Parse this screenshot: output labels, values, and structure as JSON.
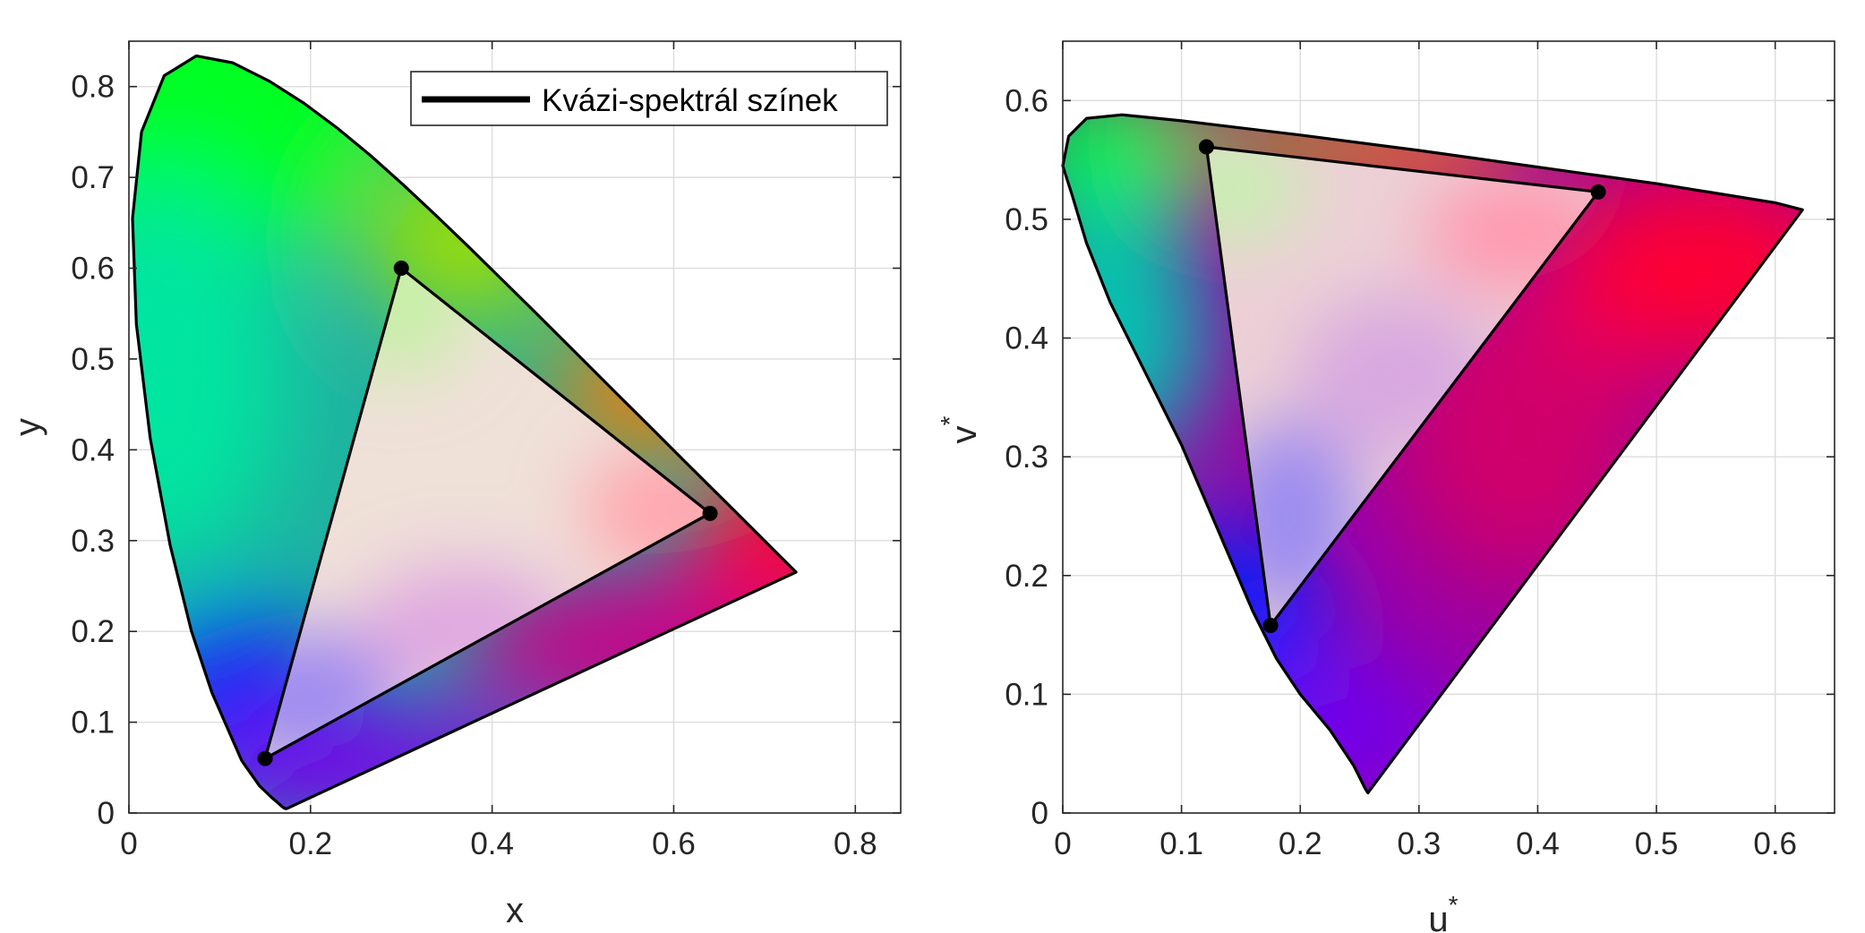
{
  "chart_data": [
    {
      "type": "line",
      "panel": "left",
      "xlabel": "x",
      "ylabel": "y",
      "xlim": [
        0,
        0.85
      ],
      "ylim": [
        0,
        0.85
      ],
      "xticks": [
        0,
        0.2,
        0.4,
        0.6,
        0.8
      ],
      "xtick_labels": [
        "0",
        "0.2",
        "0.4",
        "0.6",
        "0.8"
      ],
      "yticks": [
        0,
        0.1,
        0.2,
        0.3,
        0.4,
        0.5,
        0.6,
        0.7,
        0.8
      ],
      "ytick_labels": [
        "0",
        "0.1",
        "0.2",
        "0.3",
        "0.4",
        "0.5",
        "0.6",
        "0.7",
        "0.8"
      ],
      "grid": true,
      "legend": {
        "placement": "top-right",
        "entries": [
          "Kvázi-spektrál színek"
        ]
      },
      "series": [
        {
          "name": "Kvázi-spektrál színek",
          "x": [
            0.1741,
            0.1738,
            0.1733,
            0.1726,
            0.1714,
            0.1689,
            0.1644,
            0.1566,
            0.144,
            0.1241,
            0.0913,
            0.0687,
            0.0454,
            0.0235,
            0.0082,
            0.0039,
            0.0139,
            0.0389,
            0.0743,
            0.1142,
            0.1547,
            0.1929,
            0.2296,
            0.2658,
            0.3016,
            0.3373,
            0.3731,
            0.4087,
            0.4441,
            0.4788,
            0.5125,
            0.5448,
            0.5752,
            0.6029,
            0.627,
            0.6482,
            0.6658,
            0.6801,
            0.6915,
            0.7006,
            0.7079,
            0.714,
            0.719,
            0.723,
            0.726,
            0.7283,
            0.73,
            0.7311,
            0.732,
            0.7327,
            0.7334,
            0.734,
            0.7344,
            0.7346,
            0.7347,
            0.1741
          ],
          "y": [
            0.005,
            0.0049,
            0.0048,
            0.0048,
            0.0051,
            0.0069,
            0.0109,
            0.0177,
            0.0297,
            0.0578,
            0.1327,
            0.2007,
            0.295,
            0.4127,
            0.5384,
            0.6548,
            0.7502,
            0.812,
            0.8338,
            0.8262,
            0.8059,
            0.7816,
            0.7543,
            0.7243,
            0.6923,
            0.6589,
            0.6245,
            0.5896,
            0.5547,
            0.5202,
            0.4866,
            0.4544,
            0.4242,
            0.3965,
            0.3725,
            0.3514,
            0.334,
            0.3197,
            0.3083,
            0.2993,
            0.292,
            0.2859,
            0.2809,
            0.277,
            0.274,
            0.2717,
            0.27,
            0.2689,
            0.268,
            0.2673,
            0.2666,
            0.266,
            0.2656,
            0.2654,
            0.2653,
            0.005
          ]
        }
      ],
      "primaries": {
        "x": [
          0.64,
          0.3,
          0.15
        ],
        "y": [
          0.33,
          0.6,
          0.06
        ]
      }
    },
    {
      "type": "line",
      "panel": "right",
      "xlabel": "u",
      "xlabel_sup": "*",
      "ylabel": "v",
      "ylabel_sup": "*",
      "xlim": [
        0,
        0.65
      ],
      "ylim": [
        0,
        0.65
      ],
      "xticks": [
        0,
        0.1,
        0.2,
        0.3,
        0.4,
        0.5,
        0.6
      ],
      "xtick_labels": [
        "0",
        "0.1",
        "0.2",
        "0.3",
        "0.4",
        "0.5",
        "0.6"
      ],
      "yticks": [
        0,
        0.1,
        0.2,
        0.3,
        0.4,
        0.5,
        0.6
      ],
      "ytick_labels": [
        "0",
        "0.1",
        "0.2",
        "0.3",
        "0.4",
        "0.5",
        "0.6"
      ],
      "grid": true,
      "series": [
        {
          "x": [
            0.257,
            0.255,
            0.245,
            0.225,
            0.2,
            0.18,
            0.16,
            0.13,
            0.1,
            0.07,
            0.04,
            0.02,
            0.008,
            0.0,
            0.005,
            0.02,
            0.05,
            0.1,
            0.2,
            0.3,
            0.4,
            0.5,
            0.6,
            0.623,
            0.257
          ],
          "y": [
            0.017,
            0.02,
            0.04,
            0.07,
            0.1,
            0.13,
            0.17,
            0.24,
            0.31,
            0.37,
            0.43,
            0.48,
            0.52,
            0.545,
            0.57,
            0.585,
            0.588,
            0.583,
            0.571,
            0.558,
            0.544,
            0.53,
            0.514,
            0.508,
            0.017
          ]
        }
      ],
      "primaries": {
        "x": [
          0.451,
          0.121,
          0.175
        ],
        "y": [
          0.523,
          0.561,
          0.158
        ]
      }
    }
  ]
}
